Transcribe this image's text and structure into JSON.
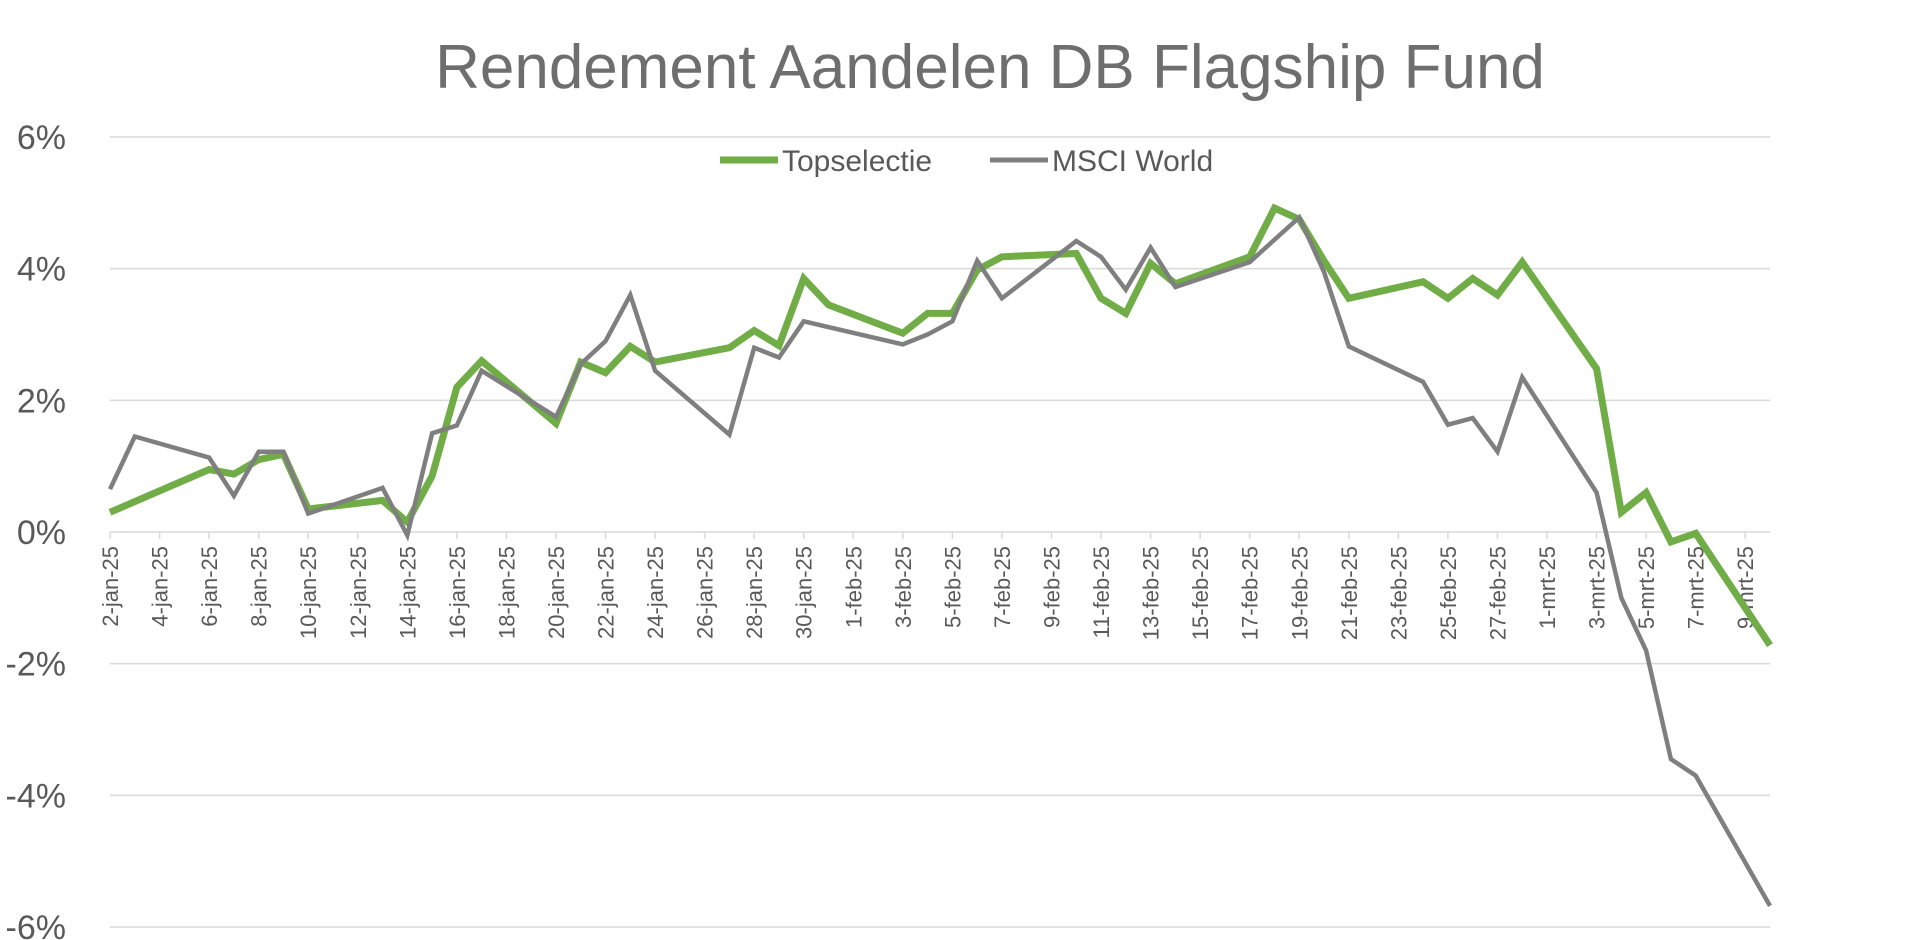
{
  "chart_data": {
    "type": "line",
    "title": "Rendement Aandelen DB Flagship Fund",
    "ylim": [
      -0.06,
      0.06
    ],
    "y_ticks": [
      {
        "value": 0.06,
        "label": "6%"
      },
      {
        "value": 0.04,
        "label": "4%"
      },
      {
        "value": 0.02,
        "label": "2%"
      },
      {
        "value": 0.0,
        "label": "0%"
      },
      {
        "value": -0.02,
        "label": "-2%"
      },
      {
        "value": -0.04,
        "label": "-4%"
      },
      {
        "value": -0.06,
        "label": "-6%"
      }
    ],
    "x_ticks": [
      {
        "date": "2025-01-02",
        "label": "2-jan-25"
      },
      {
        "date": "2025-01-04",
        "label": "4-jan-25"
      },
      {
        "date": "2025-01-06",
        "label": "6-jan-25"
      },
      {
        "date": "2025-01-08",
        "label": "8-jan-25"
      },
      {
        "date": "2025-01-10",
        "label": "10-jan-25"
      },
      {
        "date": "2025-01-12",
        "label": "12-jan-25"
      },
      {
        "date": "2025-01-14",
        "label": "14-jan-25"
      },
      {
        "date": "2025-01-16",
        "label": "16-jan-25"
      },
      {
        "date": "2025-01-18",
        "label": "18-jan-25"
      },
      {
        "date": "2025-01-20",
        "label": "20-jan-25"
      },
      {
        "date": "2025-01-22",
        "label": "22-jan-25"
      },
      {
        "date": "2025-01-24",
        "label": "24-jan-25"
      },
      {
        "date": "2025-01-26",
        "label": "26-jan-25"
      },
      {
        "date": "2025-01-28",
        "label": "28-jan-25"
      },
      {
        "date": "2025-01-30",
        "label": "30-jan-25"
      },
      {
        "date": "2025-02-01",
        "label": "1-feb-25"
      },
      {
        "date": "2025-02-03",
        "label": "3-feb-25"
      },
      {
        "date": "2025-02-05",
        "label": "5-feb-25"
      },
      {
        "date": "2025-02-07",
        "label": "7-feb-25"
      },
      {
        "date": "2025-02-09",
        "label": "9-feb-25"
      },
      {
        "date": "2025-02-11",
        "label": "11-feb-25"
      },
      {
        "date": "2025-02-13",
        "label": "13-feb-25"
      },
      {
        "date": "2025-02-15",
        "label": "15-feb-25"
      },
      {
        "date": "2025-02-17",
        "label": "17-feb-25"
      },
      {
        "date": "2025-02-19",
        "label": "19-feb-25"
      },
      {
        "date": "2025-02-21",
        "label": "21-feb-25"
      },
      {
        "date": "2025-02-23",
        "label": "23-feb-25"
      },
      {
        "date": "2025-02-25",
        "label": "25-feb-25"
      },
      {
        "date": "2025-02-27",
        "label": "27-feb-25"
      },
      {
        "date": "2025-03-01",
        "label": "1-mrt-25"
      },
      {
        "date": "2025-03-03",
        "label": "3-mrt-25"
      },
      {
        "date": "2025-03-05",
        "label": "5-mrt-25"
      },
      {
        "date": "2025-03-07",
        "label": "7-mrt-25"
      },
      {
        "date": "2025-03-09",
        "label": "9-mrt-25"
      }
    ],
    "x_range": [
      "2025-01-02",
      "2025-03-10"
    ],
    "grid": true,
    "legend_position": "top-center",
    "series": [
      {
        "name": "Topselectie",
        "color": "#70ad47",
        "points": [
          [
            "2025-01-02",
            0.003
          ],
          [
            "2025-01-06",
            0.0095
          ],
          [
            "2025-01-07",
            0.0088
          ],
          [
            "2025-01-08",
            0.011
          ],
          [
            "2025-01-09",
            0.0118
          ],
          [
            "2025-01-10",
            0.0035
          ],
          [
            "2025-01-13",
            0.0048
          ],
          [
            "2025-01-14",
            0.0015
          ],
          [
            "2025-01-15",
            0.0085
          ],
          [
            "2025-01-16",
            0.022
          ],
          [
            "2025-01-17",
            0.026
          ],
          [
            "2025-01-20",
            0.0165
          ],
          [
            "2025-01-21",
            0.0258
          ],
          [
            "2025-01-22",
            0.0242
          ],
          [
            "2025-01-23",
            0.0282
          ],
          [
            "2025-01-24",
            0.0258
          ],
          [
            "2025-01-27",
            0.028
          ],
          [
            "2025-01-28",
            0.0306
          ],
          [
            "2025-01-29",
            0.0283
          ],
          [
            "2025-01-30",
            0.0385
          ],
          [
            "2025-01-31",
            0.0345
          ],
          [
            "2025-02-03",
            0.0302
          ],
          [
            "2025-02-04",
            0.0332
          ],
          [
            "2025-02-05",
            0.0332
          ],
          [
            "2025-02-06",
            0.0398
          ],
          [
            "2025-02-07",
            0.0418
          ],
          [
            "2025-02-10",
            0.0423
          ],
          [
            "2025-02-11",
            0.0355
          ],
          [
            "2025-02-12",
            0.0332
          ],
          [
            "2025-02-13",
            0.0408
          ],
          [
            "2025-02-14",
            0.0377
          ],
          [
            "2025-02-17",
            0.0418
          ],
          [
            "2025-02-18",
            0.0492
          ],
          [
            "2025-02-19",
            0.0475
          ],
          [
            "2025-02-20",
            0.0412
          ],
          [
            "2025-02-21",
            0.0355
          ],
          [
            "2025-02-24",
            0.038
          ],
          [
            "2025-02-25",
            0.0355
          ],
          [
            "2025-02-26",
            0.0385
          ],
          [
            "2025-02-27",
            0.036
          ],
          [
            "2025-02-28",
            0.041
          ],
          [
            "2025-03-03",
            0.0248
          ],
          [
            "2025-03-04",
            0.003
          ],
          [
            "2025-03-05",
            0.006
          ],
          [
            "2025-03-06",
            -0.0015
          ],
          [
            "2025-03-07",
            -0.0002
          ],
          [
            "2025-03-10",
            -0.0172
          ]
        ]
      },
      {
        "name": "MSCI World",
        "color": "#7f7f7f",
        "points": [
          [
            "2025-01-02",
            0.0065
          ],
          [
            "2025-01-03",
            0.0145
          ],
          [
            "2025-01-06",
            0.0113
          ],
          [
            "2025-01-07",
            0.0055
          ],
          [
            "2025-01-08",
            0.0122
          ],
          [
            "2025-01-09",
            0.0122
          ],
          [
            "2025-01-10",
            0.0028
          ],
          [
            "2025-01-13",
            0.0067
          ],
          [
            "2025-01-14",
            -0.0005
          ],
          [
            "2025-01-15",
            0.015
          ],
          [
            "2025-01-16",
            0.0162
          ],
          [
            "2025-01-17",
            0.0245
          ],
          [
            "2025-01-20",
            0.0175
          ],
          [
            "2025-01-21",
            0.0255
          ],
          [
            "2025-01-22",
            0.029
          ],
          [
            "2025-01-23",
            0.036
          ],
          [
            "2025-01-24",
            0.0245
          ],
          [
            "2025-01-27",
            0.0148
          ],
          [
            "2025-01-28",
            0.028
          ],
          [
            "2025-01-29",
            0.0265
          ],
          [
            "2025-01-30",
            0.032
          ],
          [
            "2025-02-03",
            0.0285
          ],
          [
            "2025-02-04",
            0.03
          ],
          [
            "2025-02-05",
            0.032
          ],
          [
            "2025-02-06",
            0.0412
          ],
          [
            "2025-02-07",
            0.0355
          ],
          [
            "2025-02-10",
            0.0442
          ],
          [
            "2025-02-11",
            0.0418
          ],
          [
            "2025-02-12",
            0.0368
          ],
          [
            "2025-02-13",
            0.0432
          ],
          [
            "2025-02-14",
            0.0372
          ],
          [
            "2025-02-17",
            0.041
          ],
          [
            "2025-02-19",
            0.0478
          ],
          [
            "2025-02-20",
            0.0395
          ],
          [
            "2025-02-21",
            0.0282
          ],
          [
            "2025-02-24",
            0.0228
          ],
          [
            "2025-02-25",
            0.0163
          ],
          [
            "2025-02-26",
            0.0173
          ],
          [
            "2025-02-27",
            0.0122
          ],
          [
            "2025-02-28",
            0.0235
          ],
          [
            "2025-03-03",
            0.006
          ],
          [
            "2025-03-04",
            -0.01
          ],
          [
            "2025-03-05",
            -0.018
          ],
          [
            "2025-03-06",
            -0.0345
          ],
          [
            "2025-03-07",
            -0.037
          ],
          [
            "2025-03-10",
            -0.0568
          ]
        ]
      }
    ]
  }
}
